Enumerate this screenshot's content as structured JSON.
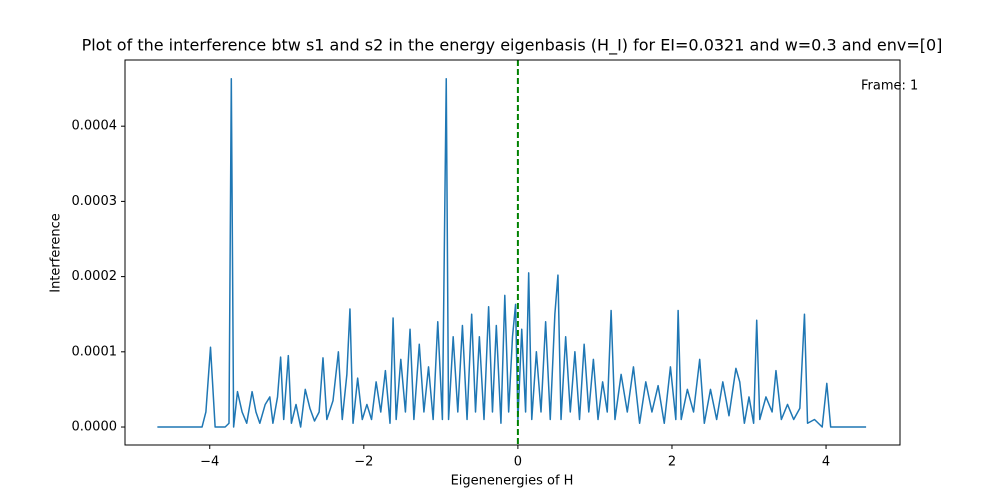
{
  "chart_data": {
    "type": "line",
    "title": "Plot of the interference btw s1 and s2 in the energy eigenbasis (H_I) for EI=0.0321 and w=0.3 and env=[0]",
    "xlabel": "Eigenenergies of H",
    "ylabel": "Interference",
    "annotation": "Frame: 1",
    "color": "#1f77b4",
    "vline": 0,
    "vline_color": "#008000",
    "xlim": [
      -5.1,
      4.96
    ],
    "ylim": [
      -2.39e-05,
      0.000488
    ],
    "xticks": [
      {
        "value": -4,
        "label": "−4"
      },
      {
        "value": -2,
        "label": "−2"
      },
      0,
      2,
      4
    ],
    "yticks": [
      {
        "value": 0,
        "label": "0.0000"
      },
      {
        "value": 0.0001,
        "label": "0.0001"
      },
      {
        "value": 0.0002,
        "label": "0.0002"
      },
      {
        "value": 0.0003,
        "label": "0.0003"
      },
      {
        "value": 0.0004,
        "label": "0.0004"
      }
    ],
    "x": [
      -4.68,
      -4.1,
      -4.05,
      -3.99,
      -3.93,
      -3.8,
      -3.75,
      -3.72,
      -3.69,
      -3.64,
      -3.58,
      -3.52,
      -3.45,
      -3.4,
      -3.35,
      -3.28,
      -3.22,
      -3.18,
      -3.12,
      -3.08,
      -3.04,
      -2.98,
      -2.94,
      -2.88,
      -2.82,
      -2.76,
      -2.7,
      -2.64,
      -2.58,
      -2.53,
      -2.48,
      -2.4,
      -2.33,
      -2.28,
      -2.22,
      -2.18,
      -2.14,
      -2.08,
      -2.02,
      -1.96,
      -1.9,
      -1.84,
      -1.78,
      -1.72,
      -1.66,
      -1.62,
      -1.58,
      -1.52,
      -1.46,
      -1.4,
      -1.35,
      -1.28,
      -1.22,
      -1.16,
      -1.1,
      -1.04,
      -0.98,
      -0.93,
      -0.9,
      -0.84,
      -0.78,
      -0.72,
      -0.66,
      -0.6,
      -0.55,
      -0.5,
      -0.44,
      -0.38,
      -0.33,
      -0.28,
      -0.22,
      -0.17,
      -0.12,
      -0.07,
      -0.03,
      0.0,
      0.05,
      0.1,
      0.14,
      0.18,
      0.24,
      0.3,
      0.36,
      0.42,
      0.48,
      0.52,
      0.56,
      0.62,
      0.68,
      0.74,
      0.8,
      0.86,
      0.92,
      0.98,
      1.04,
      1.1,
      1.16,
      1.21,
      1.26,
      1.34,
      1.42,
      1.5,
      1.58,
      1.66,
      1.74,
      1.82,
      1.9,
      1.98,
      2.05,
      2.08,
      2.12,
      2.2,
      2.28,
      2.36,
      2.42,
      2.5,
      2.58,
      2.66,
      2.74,
      2.83,
      2.88,
      2.94,
      3.0,
      3.06,
      3.1,
      3.14,
      3.22,
      3.3,
      3.35,
      3.42,
      3.5,
      3.58,
      3.66,
      3.72,
      3.76,
      3.85,
      3.95,
      4.01,
      4.06,
      4.52
    ],
    "values": [
      0,
      0,
      2e-05,
      0.000106,
      0,
      0,
      5e-06,
      0.000463,
      0,
      4.7e-05,
      2e-05,
      5e-06,
      4.7e-05,
      2e-05,
      5e-06,
      3e-05,
      4e-05,
      5e-06,
      4e-05,
      9.3e-05,
      1e-05,
      9.5e-05,
      5e-06,
      3e-05,
      0,
      5e-05,
      2.5e-05,
      8e-06,
      2e-05,
      9.2e-05,
      1e-05,
      3.5e-05,
      0.0001,
      1e-05,
      7e-05,
      0.000157,
      5e-06,
      6.5e-05,
      1e-05,
      3e-05,
      1e-05,
      6e-05,
      2e-05,
      7.5e-05,
      5e-06,
      0.000145,
      1e-05,
      9e-05,
      2e-05,
      0.00013,
      1e-05,
      0.00011,
      2e-05,
      8e-05,
      1e-05,
      0.00014,
      1e-05,
      0.000463,
      1e-05,
      0.00012,
      2e-05,
      0.000135,
      1e-05,
      0.00015,
      2e-05,
      0.00012,
      1e-05,
      0.00016,
      2e-05,
      0.000135,
      5e-06,
      0.000175,
      2e-05,
      0.00012,
      0.000163,
      1e-05,
      0.00013,
      2e-05,
      0.000205,
      1e-05,
      0.0001,
      2e-05,
      0.00014,
      1e-05,
      0.00015,
      0.000202,
      1e-05,
      0.00012,
      2e-05,
      0.0001,
      1e-05,
      0.00011,
      2e-05,
      9e-05,
      1e-05,
      6e-05,
      2e-05,
      0.000155,
      1e-05,
      7e-05,
      2e-05,
      8e-05,
      5e-06,
      6e-05,
      2e-05,
      5.5e-05,
      5e-06,
      8e-05,
      1e-05,
      0.000155,
      1e-05,
      5e-05,
      2e-05,
      9e-05,
      5e-06,
      5e-05,
      1e-05,
      6e-05,
      1.5e-05,
      7.8e-05,
      6e-05,
      5e-06,
      4e-05,
      5e-06,
      0.000142,
      1e-05,
      4e-05,
      2e-05,
      7.5e-05,
      1e-05,
      3e-05,
      1e-05,
      2.5e-05,
      0.00015,
      5e-06,
      1e-05,
      0,
      5.8e-05,
      0,
      0
    ]
  }
}
